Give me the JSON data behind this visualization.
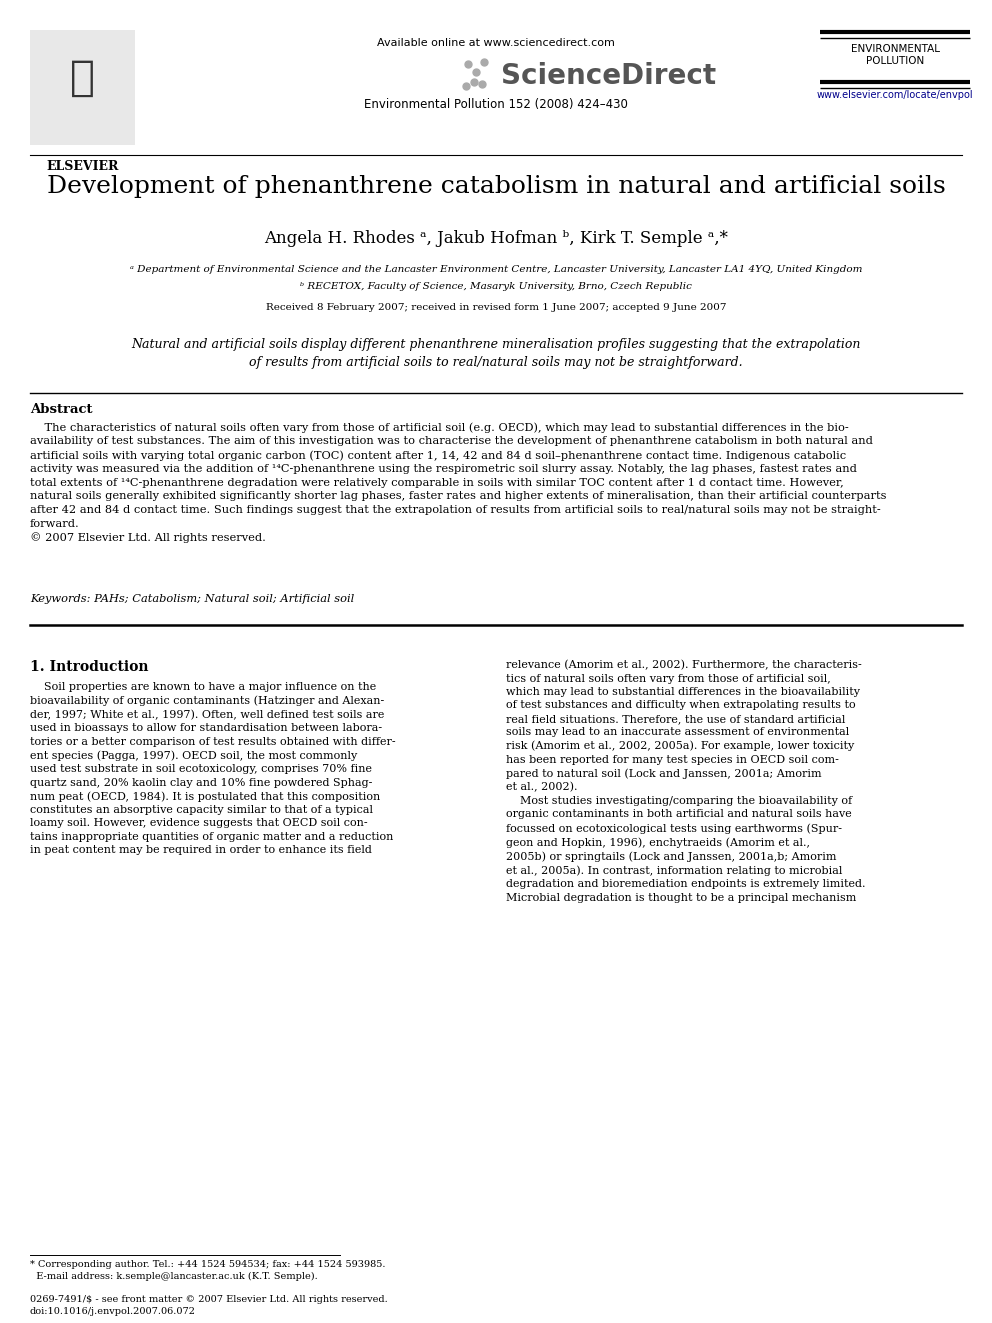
{
  "title": "Development of phenanthrene catabolism in natural and artificial soils",
  "authors": "Angela H. Rhodes ᵃ, Jakub Hofman ᵇ, Kirk T. Semple ᵃ,*",
  "affil_a": "ᵃ Department of Environmental Science and the Lancaster Environment Centre, Lancaster University, Lancaster LA1 4YQ, United Kingdom",
  "affil_b": "ᵇ RECETOX, Faculty of Science, Masaryk University, Brno, Czech Republic",
  "received": "Received 8 February 2007; received in revised form 1 June 2007; accepted 9 June 2007",
  "highlight": "Natural and artificial soils display different phenanthrene mineralisation profiles suggesting that the extrapolation\nof results from artificial soils to real/natural soils may not be straightforward.",
  "abstract_title": "Abstract",
  "abstract_body": "    The characteristics of natural soils often vary from those of artificial soil (e.g. OECD), which may lead to substantial differences in the bio-\navailability of test substances. The aim of this investigation was to characterise the development of phenanthrene catabolism in both natural and\nartificial soils with varying total organic carbon (TOC) content after 1, 14, 42 and 84 d soil–phenanthrene contact time. Indigenous catabolic\nactivity was measured via the addition of ¹⁴C-phenanthrene using the respirometric soil slurry assay. Notably, the lag phases, fastest rates and\ntotal extents of ¹⁴C-phenanthrene degradation were relatively comparable in soils with similar TOC content after 1 d contact time. However,\nnatural soils generally exhibited significantly shorter lag phases, faster rates and higher extents of mineralisation, than their artificial counterparts\nafter 42 and 84 d contact time. Such findings suggest that the extrapolation of results from artificial soils to real/natural soils may not be straight-\nforward.\n© 2007 Elsevier Ltd. All rights reserved.",
  "keywords": "Keywords: PAHs; Catabolism; Natural soil; Artificial soil",
  "section1_title": "1. Introduction",
  "col1_text": "    Soil properties are known to have a major influence on the\nbioavailability of organic contaminants (Hatzinger and Alexan-\nder, 1997; White et al., 1997). Often, well defined test soils are\nused in bioassays to allow for standardisation between labora-\ntories or a better comparison of test results obtained with differ-\nent species (Pagga, 1997). OECD soil, the most commonly\nused test substrate in soil ecotoxicology, comprises 70% fine\nquartz sand, 20% kaolin clay and 10% fine powdered Sphag-\nnum peat (OECD, 1984). It is postulated that this composition\nconstitutes an absorptive capacity similar to that of a typical\nloamy soil. However, evidence suggests that OECD soil con-\ntains inappropriate quantities of organic matter and a reduction\nin peat content may be required in order to enhance its field",
  "col2_text": "relevance (Amorim et al., 2002). Furthermore, the characteris-\ntics of natural soils often vary from those of artificial soil,\nwhich may lead to substantial differences in the bioavailability\nof test substances and difficulty when extrapolating results to\nreal field situations. Therefore, the use of standard artificial\nsoils may lead to an inaccurate assessment of environmental\nrisk (Amorim et al., 2002, 2005a). For example, lower toxicity\nhas been reported for many test species in OECD soil com-\npared to natural soil (Lock and Janssen, 2001a; Amorim\net al., 2002).\n    Most studies investigating/comparing the bioavailability of\norganic contaminants in both artificial and natural soils have\nfocussed on ecotoxicological tests using earthworms (Spur-\ngeon and Hopkin, 1996), enchytraeids (Amorim et al.,\n2005b) or springtails (Lock and Janssen, 2001a,b; Amorim\net al., 2005a). In contrast, information relating to microbial\ndegradation and bioremediation endpoints is extremely limited.\nMicrobial degradation is thought to be a principal mechanism",
  "footer_star": "* Corresponding author. Tel.: +44 1524 594534; fax: +44 1524 593985.\n  E-mail address: k.semple@lancaster.ac.uk (K.T. Semple).",
  "footer_issn": "0269-7491/$ - see front matter © 2007 Elsevier Ltd. All rights reserved.\ndoi:10.1016/j.envpol.2007.06.072",
  "journal_info": "Environmental Pollution 152 (2008) 424–430",
  "available_online": "Available online at www.sciencedirect.com",
  "sciencedirect": "ScienceDirect",
  "env_pollution": "ENVIRONMENTAL\nPOLLUTION",
  "website": "www.elsevier.com/locate/envpol",
  "elsevier_text": "ELSEVIER",
  "bg_color": "#ffffff",
  "text_color": "#000000",
  "link_color": "#00008b",
  "gray_color": "#808080"
}
